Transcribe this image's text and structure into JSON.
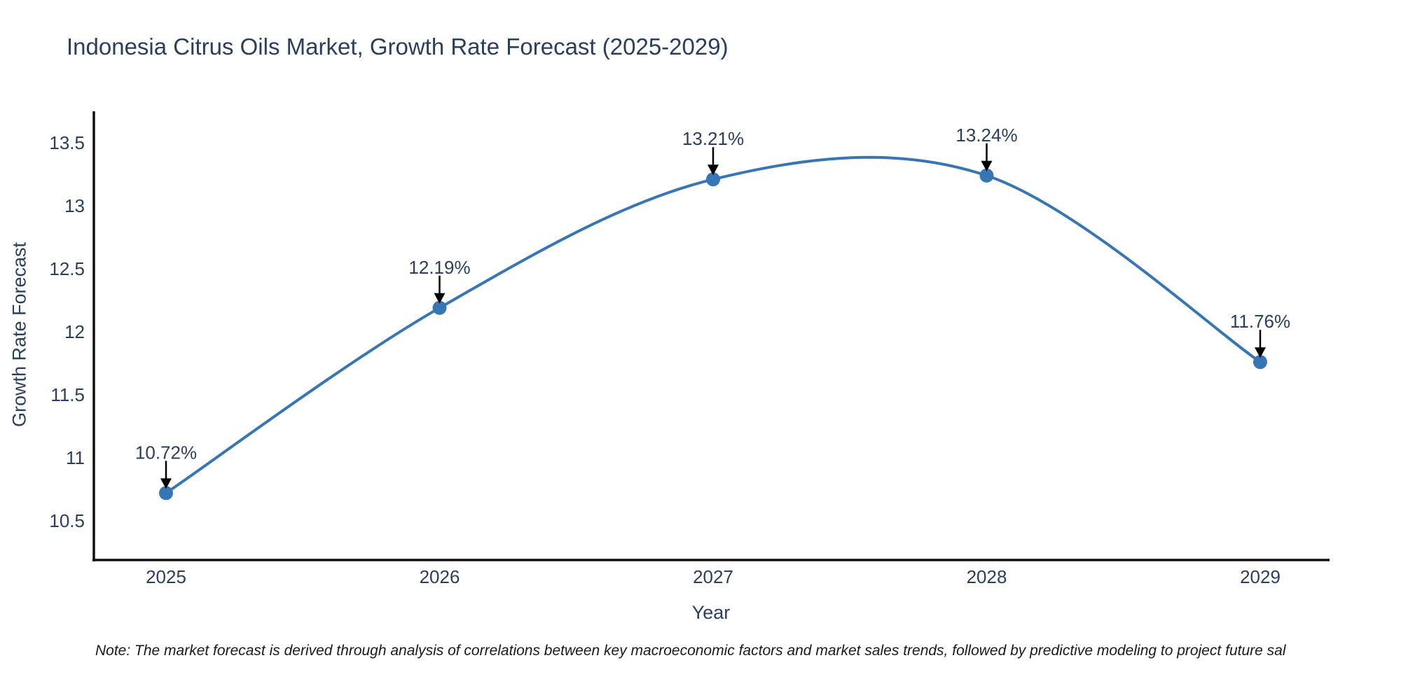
{
  "chart": {
    "title": "Indonesia Citrus Oils Market, Growth Rate Forecast (2025-2029)",
    "xlabel": "Year",
    "ylabel": "Growth Rate Forecast"
  },
  "chart_data": {
    "type": "line",
    "title": "Indonesia Citrus Oils Market, Growth Rate Forecast (2025-2029)",
    "xlabel": "Year",
    "ylabel": "Growth Rate Forecast",
    "x": [
      2025,
      2026,
      2027,
      2028,
      2029
    ],
    "values": [
      10.72,
      12.19,
      13.21,
      13.24,
      11.76
    ],
    "point_labels": [
      "10.72%",
      "12.19%",
      "13.21%",
      "13.24%",
      "11.76%"
    ],
    "x_ticks": [
      "2025",
      "2026",
      "2027",
      "2028",
      "2029"
    ],
    "y_ticks": [
      13.5,
      13,
      12.5,
      12,
      11.5,
      11,
      10.5
    ],
    "ylim": [
      10.19,
      13.74
    ],
    "line_shape": "spline",
    "grid": false,
    "legend": "none",
    "line_color": "#3776b4",
    "marker_color": "#3776b4",
    "axis_line_color": "#111111",
    "annotation_arrow_color": "#000000"
  },
  "note": {
    "text": "Note: The market forecast is derived through analysis of correlations between key macroeconomic factors and market sales trends, followed by predictive modeling to project future sal"
  }
}
